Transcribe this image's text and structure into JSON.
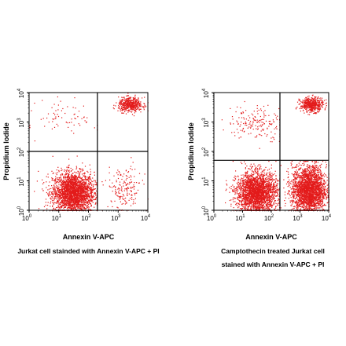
{
  "chart_data": [
    {
      "type": "scatter",
      "xscale": "log",
      "yscale": "log",
      "xlim": [
        1,
        10000
      ],
      "ylim": [
        1,
        10000
      ],
      "x_ticks": [
        "10",
        "10",
        "10",
        "10",
        "10"
      ],
      "x_tick_exponents": [
        "0",
        "1",
        "2",
        "3",
        "4"
      ],
      "y_ticks": [
        "10",
        "10",
        "10",
        "10",
        "10"
      ],
      "y_tick_exponents": [
        "0",
        "1",
        "2",
        "3",
        "4"
      ],
      "xlabel": "Annexin V-APC",
      "ylabel": "Propidium Iodide",
      "caption_lines": [
        "Jurkat cell stainded with Annexin V-APC + PI"
      ],
      "quadrant_gate": {
        "x": 200,
        "y": 100
      },
      "point_color": "#e31b1b",
      "populations": [
        {
          "quadrant": "lower-left",
          "center_x": 30,
          "center_y": 4,
          "relative_density": "very high"
        },
        {
          "quadrant": "upper-right",
          "center_x": 2500,
          "center_y": 4000,
          "relative_density": "high"
        },
        {
          "quadrant": "lower-right",
          "center_x": 1500,
          "center_y": 5,
          "relative_density": "medium"
        },
        {
          "quadrant": "upper-left",
          "center_x": 20,
          "center_y": 1500,
          "relative_density": "low"
        }
      ]
    },
    {
      "type": "scatter",
      "xscale": "log",
      "yscale": "log",
      "xlim": [
        1,
        10000
      ],
      "ylim": [
        1,
        10000
      ],
      "x_ticks": [
        "10",
        "10",
        "10",
        "10",
        "10"
      ],
      "x_tick_exponents": [
        "0",
        "1",
        "2",
        "3",
        "4"
      ],
      "y_ticks": [
        "10",
        "10",
        "10",
        "10",
        "10"
      ],
      "y_tick_exponents": [
        "0",
        "1",
        "2",
        "3",
        "4"
      ],
      "xlabel": "Annexin V-APC",
      "ylabel": "Propidium Iodide",
      "caption_lines": [
        "Camptothecin treated Jurkat cell",
        "stained with Annexin V-APC + PI"
      ],
      "quadrant_gate": {
        "x": 200,
        "y": 50
      },
      "point_color": "#e31b1b",
      "populations": [
        {
          "quadrant": "lower-left",
          "center_x": 30,
          "center_y": 4,
          "relative_density": "very high"
        },
        {
          "quadrant": "lower-right",
          "center_x": 2000,
          "center_y": 5,
          "relative_density": "very high"
        },
        {
          "quadrant": "upper-right",
          "center_x": 2500,
          "center_y": 4000,
          "relative_density": "high"
        },
        {
          "quadrant": "upper-left",
          "center_x": 30,
          "center_y": 1000,
          "relative_density": "medium"
        }
      ]
    }
  ]
}
